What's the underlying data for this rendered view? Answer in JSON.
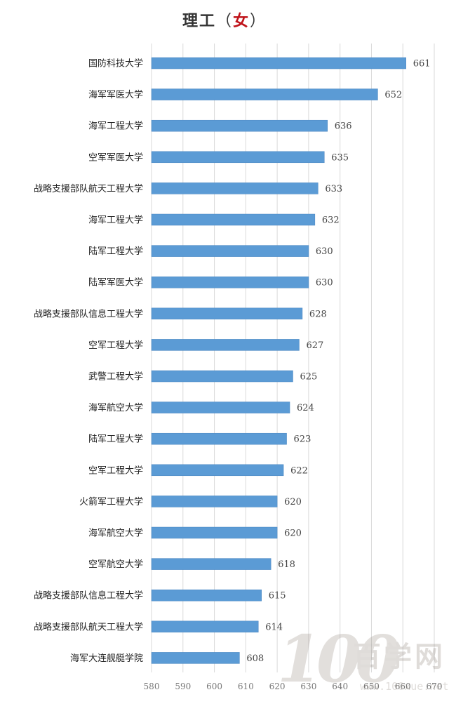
{
  "title": {
    "main": "理工",
    "open_paren": "（",
    "accent": "女",
    "close_paren": "）"
  },
  "colors": {
    "bar": "#5b9bd5",
    "accent": "#c0141b"
  },
  "chart_data": {
    "type": "bar",
    "orientation": "horizontal",
    "title": "理工（女）",
    "categories": [
      "国防科技大学",
      "海军军医大学",
      "海军工程大学",
      "空军军医大学",
      "战略支援部队航天工程大学",
      "海军工程大学",
      "陆军工程大学",
      "陆军军医大学",
      "战略支援部队信息工程大学",
      "空军工程大学",
      "武警工程大学",
      "海军航空大学",
      "陆军工程大学",
      "空军工程大学",
      "火箭军工程大学",
      "海军航空大学",
      "空军航空大学",
      "战略支援部队信息工程大学",
      "战略支援部队航天工程大学",
      "海军大连舰艇学院"
    ],
    "values": [
      661,
      652,
      636,
      635,
      633,
      632,
      630,
      630,
      628,
      627,
      625,
      624,
      623,
      622,
      620,
      620,
      618,
      615,
      614,
      608
    ],
    "xlim": [
      580,
      670
    ],
    "xticks": [
      580,
      590,
      600,
      610,
      620,
      630,
      640,
      650,
      660,
      670
    ],
    "grid": "vertical",
    "legend": "none",
    "data_labels": true
  },
  "watermark": {
    "digits": "100",
    "text": "百学网",
    "url": "www.100xue.net"
  }
}
